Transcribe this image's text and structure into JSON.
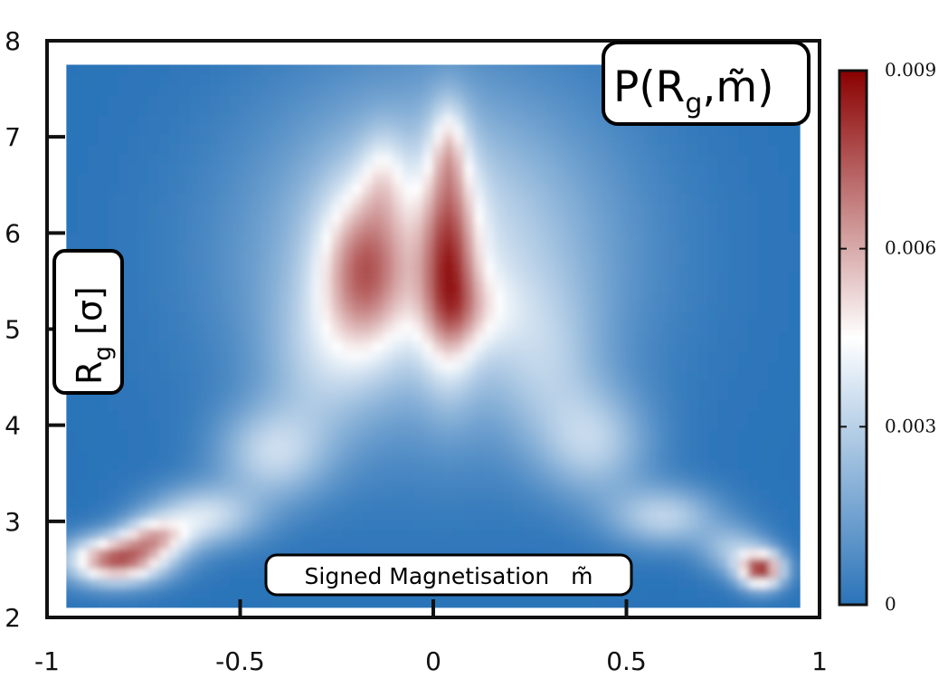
{
  "chart_data": {
    "type": "heatmap",
    "title": "P(R_g, m̃)",
    "title_parts": {
      "main": "P(R",
      "sub": "g",
      "rest": ",m̃)"
    },
    "xlabel": "Signed Magnetisation   m̃",
    "ylabel_parts": {
      "main": "R",
      "sub": "g",
      "rest": " [σ]"
    },
    "xlim": [
      -1,
      1
    ],
    "ylim": [
      2,
      8
    ],
    "xticks": [
      -1,
      -0.5,
      0,
      0.5,
      1
    ],
    "xtick_labels": [
      "-1",
      "-0.5",
      "0",
      "0.5",
      "1"
    ],
    "yticks": [
      2,
      3,
      4,
      5,
      6,
      7,
      8
    ],
    "ytick_labels": [
      "2",
      "3",
      "4",
      "5",
      "6",
      "7",
      "8"
    ],
    "data_extent": {
      "x": [
        -0.95,
        0.95
      ],
      "y": [
        2.1,
        7.75
      ]
    },
    "colorbar": {
      "range": [
        0,
        0.009
      ],
      "ticks": [
        0,
        0.003,
        0.006,
        0.009
      ],
      "tick_labels": [
        "0",
        "0.003",
        "0.006",
        "0.009"
      ],
      "colors": [
        "#2a73b8",
        "#ffffff",
        "#8a0000"
      ]
    },
    "peaks": [
      {
        "x": 0.04,
        "y": 5.7,
        "sx": 0.05,
        "sy": 0.8,
        "amp": 0.0045
      },
      {
        "x": 0.04,
        "y": 6.9,
        "sx": 0.03,
        "sy": 0.35,
        "amp": 0.002
      },
      {
        "x": 0.1,
        "y": 5.2,
        "sx": 0.08,
        "sy": 0.3,
        "amp": 0.0015
      },
      {
        "x": -0.18,
        "y": 5.6,
        "sx": 0.08,
        "sy": 0.6,
        "amp": 0.0042
      },
      {
        "x": -0.13,
        "y": 6.6,
        "sx": 0.04,
        "sy": 0.35,
        "amp": 0.0015
      },
      {
        "x": 0.0,
        "y": 5.8,
        "sx": 0.32,
        "sy": 1.2,
        "amp": 0.0038
      },
      {
        "x": -0.3,
        "y": 4.6,
        "sx": 0.1,
        "sy": 0.6,
        "amp": 0.0015
      },
      {
        "x": 0.3,
        "y": 4.6,
        "sx": 0.1,
        "sy": 0.6,
        "amp": 0.0015
      },
      {
        "x": -0.42,
        "y": 3.7,
        "sx": 0.1,
        "sy": 0.35,
        "amp": 0.0028
      },
      {
        "x": 0.42,
        "y": 3.8,
        "sx": 0.1,
        "sy": 0.4,
        "amp": 0.0025
      },
      {
        "x": -0.6,
        "y": 3.05,
        "sx": 0.1,
        "sy": 0.22,
        "amp": 0.0035
      },
      {
        "x": 0.6,
        "y": 3.05,
        "sx": 0.1,
        "sy": 0.22,
        "amp": 0.003
      },
      {
        "x": -0.82,
        "y": 2.6,
        "sx": 0.09,
        "sy": 0.17,
        "amp": 0.0075
      },
      {
        "x": -0.72,
        "y": 2.85,
        "sx": 0.06,
        "sy": 0.14,
        "amp": 0.004
      },
      {
        "x": 0.85,
        "y": 2.5,
        "sx": 0.04,
        "sy": 0.13,
        "amp": 0.008
      },
      {
        "x": 0.78,
        "y": 2.7,
        "sx": 0.06,
        "sy": 0.18,
        "amp": 0.0025
      }
    ]
  }
}
